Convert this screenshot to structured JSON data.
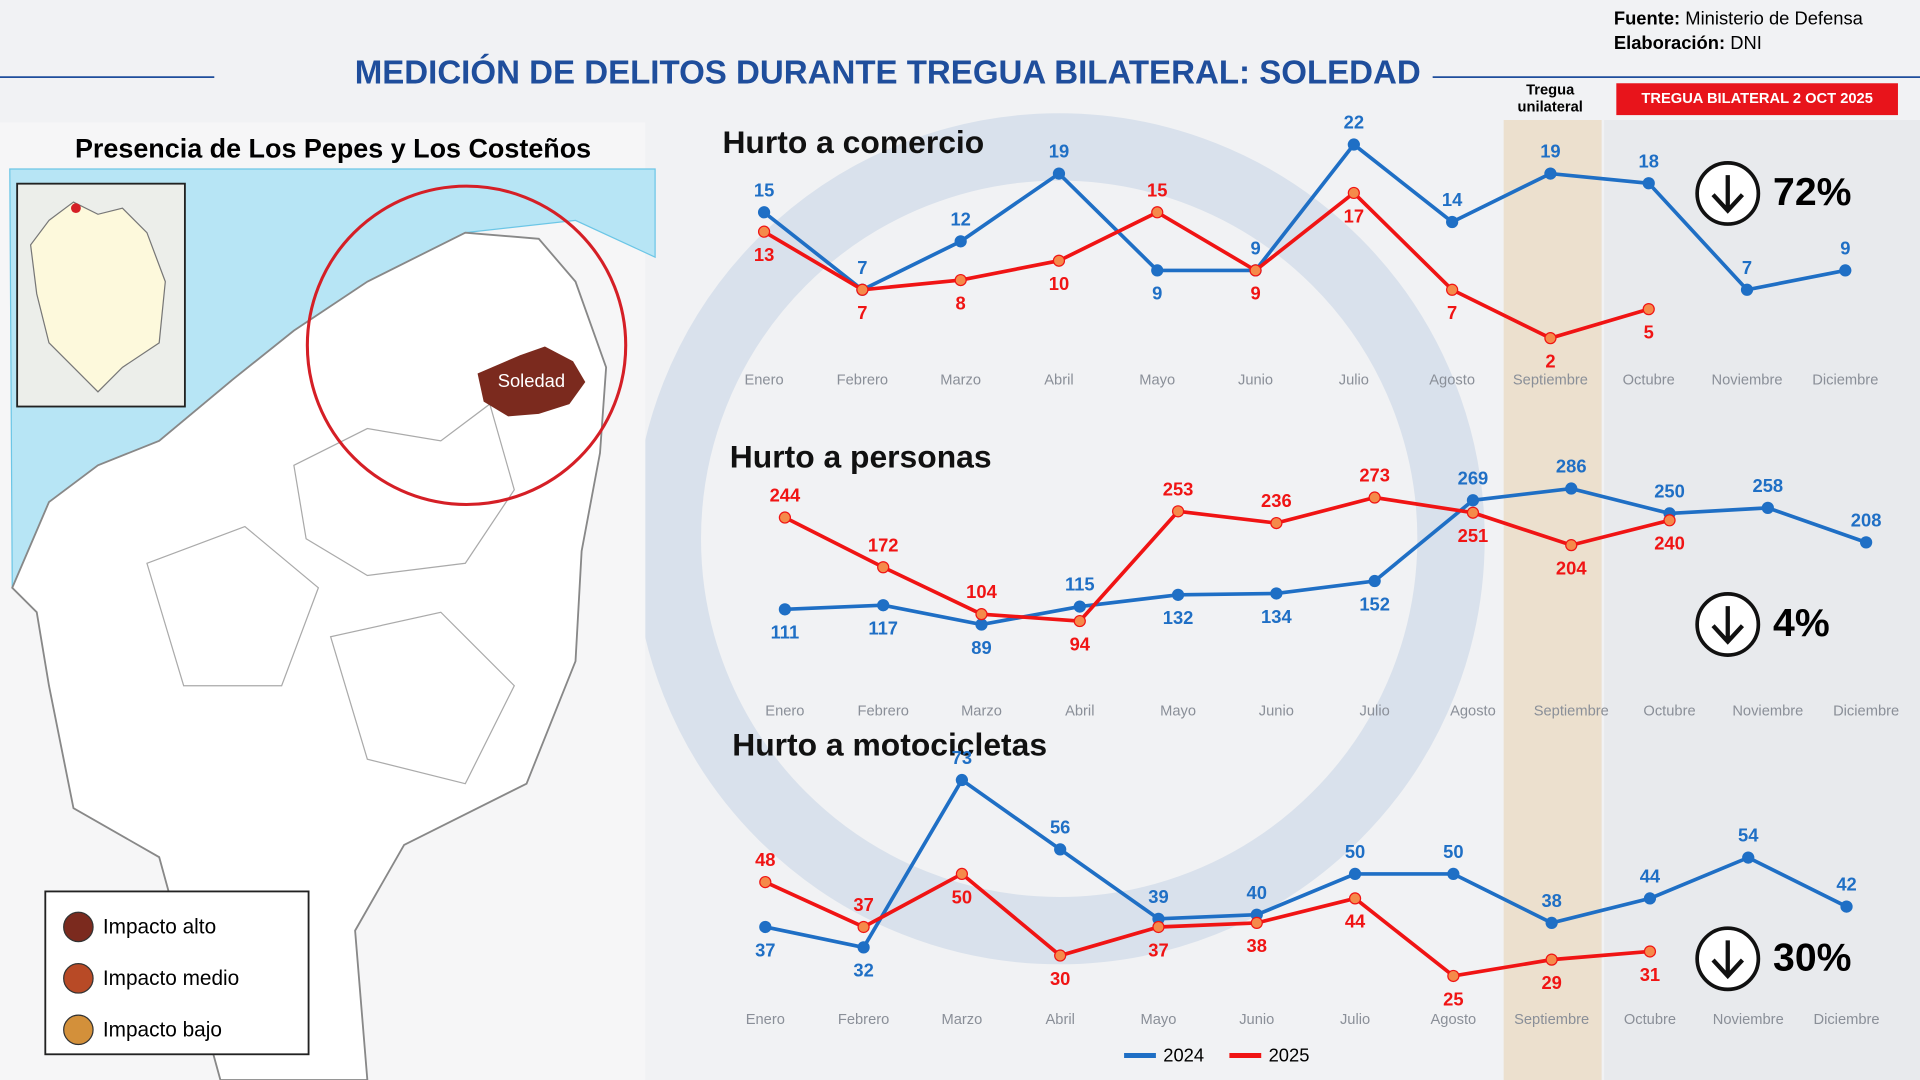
{
  "header": {
    "title": "MEDICIÓN DE DELITOS DURANTE TREGUA BILATERAL: SOLEDAD",
    "source_label": "Fuente:",
    "source": "Ministerio de Defensa",
    "credit_label": "Elaboración:",
    "credit": "DNI"
  },
  "truces": {
    "unilateral": [
      "Tregua",
      "unilateral"
    ],
    "bilateral": "TREGUA BILATERAL  2 OCT 2025"
  },
  "map": {
    "title": "Presencia de Los Pepes y Los Costeños",
    "place": "Soledad",
    "legend": [
      {
        "label": "Impacto alto",
        "color": "#7b2a1e"
      },
      {
        "label": "Impacto medio",
        "color": "#b84a26"
      },
      {
        "label": "Impacto bajo",
        "color": "#d3903a"
      }
    ]
  },
  "chart_data": [
    {
      "type": "line",
      "title": "Hurto a comercio",
      "categories": [
        "Enero",
        "Febrero",
        "Marzo",
        "Abril",
        "Mayo",
        "Junio",
        "Julio",
        "Agosto",
        "Septiembre",
        "Octubre",
        "Noviembre",
        "Diciembre"
      ],
      "series": [
        {
          "name": "2024",
          "color": "#1f6fc5",
          "values": [
            15,
            7,
            12,
            19,
            9,
            9,
            22,
            14,
            19,
            18,
            7,
            9
          ]
        },
        {
          "name": "2025",
          "color": "#f01414",
          "values": [
            13,
            7,
            8,
            10,
            15,
            9,
            17,
            7,
            2,
            5,
            null,
            null
          ]
        }
      ],
      "ylim": [
        0,
        25
      ],
      "annotation": "72%"
    },
    {
      "type": "line",
      "title": "Hurto a personas",
      "categories": [
        "Enero",
        "Febrero",
        "Marzo",
        "Abril",
        "Mayo",
        "Junio",
        "Julio",
        "Agosto",
        "Septiembre",
        "Octubre",
        "Noviembre",
        "Diciembre"
      ],
      "series": [
        {
          "name": "2024",
          "color": "#1f6fc5",
          "values": [
            111,
            117,
            89,
            115,
            132,
            134,
            152,
            269,
            286,
            250,
            258,
            208
          ]
        },
        {
          "name": "2025",
          "color": "#f01414",
          "values": [
            244,
            172,
            104,
            94,
            253,
            236,
            273,
            251,
            204,
            240,
            null,
            null
          ]
        }
      ],
      "ylim": [
        50,
        300
      ],
      "annotation": "4%"
    },
    {
      "type": "line",
      "title": "Hurto a motocicletas",
      "categories": [
        "Enero",
        "Febrero",
        "Marzo",
        "Abril",
        "Mayo",
        "Junio",
        "Julio",
        "Agosto",
        "Septiembre",
        "Octubre",
        "Noviembre",
        "Diciembre"
      ],
      "series": [
        {
          "name": "2024",
          "color": "#1f6fc5",
          "values": [
            37,
            32,
            73,
            56,
            39,
            40,
            50,
            50,
            38,
            44,
            54,
            42
          ]
        },
        {
          "name": "2025",
          "color": "#f01414",
          "values": [
            48,
            37,
            50,
            30,
            37,
            38,
            44,
            25,
            29,
            31,
            null,
            null
          ]
        }
      ],
      "ylim": [
        20,
        80
      ],
      "annotation": "30%"
    }
  ]
}
